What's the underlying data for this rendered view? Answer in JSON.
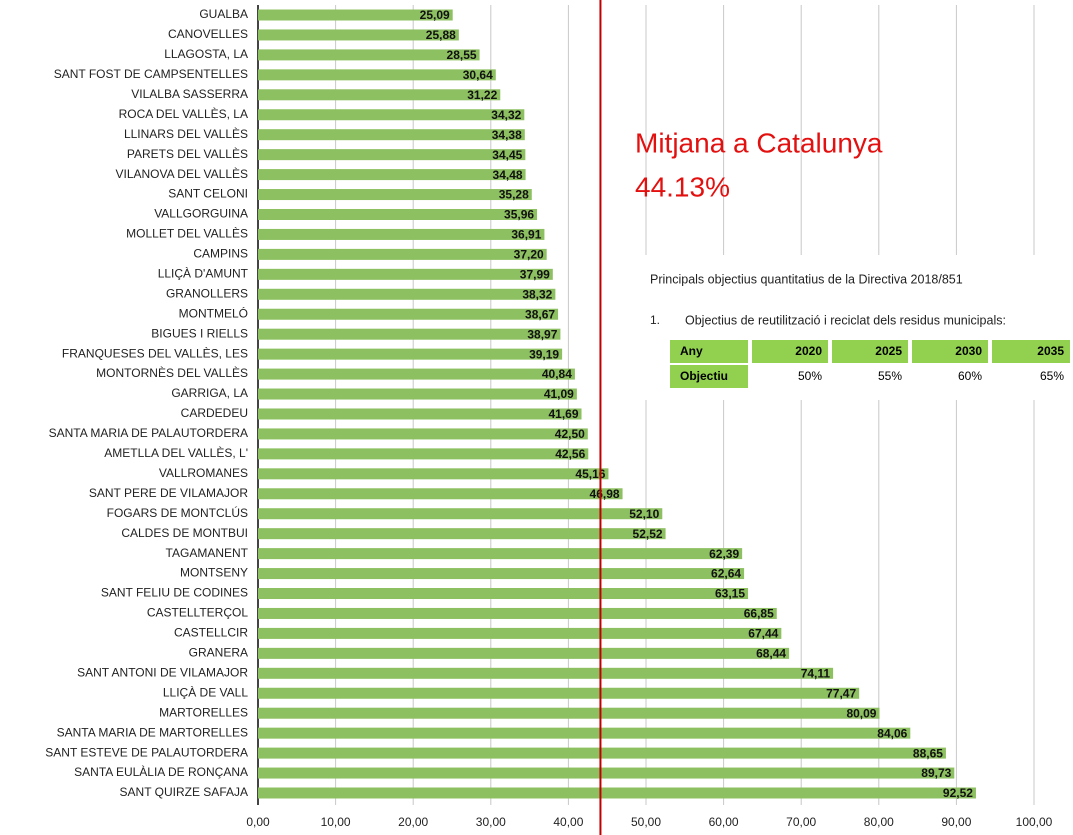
{
  "chart_data": {
    "type": "hbar",
    "categories": [
      "GUALBA",
      "CANOVELLES",
      "LLAGOSTA, LA",
      "SANT FOST DE CAMPSENTELLES",
      "VILALBA SASSERRA",
      "ROCA DEL VALLÈS, LA",
      "LLINARS DEL VALLÈS",
      "PARETS DEL VALLÈS",
      "VILANOVA DEL VALLÈS",
      "SANT CELONI",
      "VALLGORGUINA",
      "MOLLET DEL VALLÈS",
      "CAMPINS",
      "LLIÇÀ D'AMUNT",
      "GRANOLLERS",
      "MONTMELÓ",
      "BIGUES I RIELLS",
      "FRANQUESES DEL VALLÈS, LES",
      "MONTORNÈS DEL VALLÈS",
      "GARRIGA, LA",
      "CARDEDEU",
      "SANTA MARIA DE PALAUTORDERA",
      "AMETLLA DEL VALLÈS, L'",
      "VALLROMANES",
      "SANT PERE DE VILAMAJOR",
      "FOGARS DE MONTCLÚS",
      "CALDES DE MONTBUI",
      "TAGAMANENT",
      "MONTSENY",
      "SANT FELIU DE CODINES",
      "CASTELLTERÇOL",
      "CASTELLCIR",
      "GRANERA",
      "SANT ANTONI DE VILAMAJOR",
      "LLIÇÀ DE VALL",
      "MARTORELLES",
      "SANTA MARIA DE MARTORELLES",
      "SANT ESTEVE DE PALAUTORDERA",
      "SANTA EULÀLIA DE RONÇANA",
      "SANT QUIRZE SAFAJA"
    ],
    "values": [
      25.09,
      25.88,
      28.55,
      30.64,
      31.22,
      34.32,
      34.38,
      34.45,
      34.48,
      35.28,
      35.96,
      36.91,
      37.2,
      37.99,
      38.32,
      38.67,
      38.97,
      39.19,
      40.84,
      41.09,
      41.69,
      42.5,
      42.56,
      45.16,
      46.98,
      52.1,
      52.52,
      62.39,
      62.64,
      63.15,
      66.85,
      67.44,
      68.44,
      74.11,
      77.47,
      80.09,
      84.06,
      88.65,
      89.73,
      92.52
    ],
    "value_labels": [
      "25,09",
      "25,88",
      "28,55",
      "30,64",
      "31,22",
      "34,32",
      "34,38",
      "34,45",
      "34,48",
      "35,28",
      "35,96",
      "36,91",
      "37,20",
      "37,99",
      "38,32",
      "38,67",
      "38,97",
      "39,19",
      "40,84",
      "41,09",
      "41,69",
      "42,50",
      "42,56",
      "45,16",
      "46,98",
      "52,10",
      "52,52",
      "62,39",
      "62,64",
      "63,15",
      "66,85",
      "67,44",
      "68,44",
      "74,11",
      "77,47",
      "80,09",
      "84,06",
      "88,65",
      "89,73",
      "92,52"
    ],
    "color": "#8dc060",
    "xlim": [
      0,
      100
    ],
    "xticks": [
      {
        "value": 0,
        "label": "0,00"
      },
      {
        "value": 10,
        "label": "10,00"
      },
      {
        "value": 20,
        "label": "20,00"
      },
      {
        "value": 30,
        "label": "30,00"
      },
      {
        "value": 40,
        "label": "40,00"
      },
      {
        "value": 50,
        "label": "50,00"
      },
      {
        "value": 60,
        "label": "60,00"
      },
      {
        "value": 70,
        "label": "70,00"
      },
      {
        "value": 80,
        "label": "80,00"
      },
      {
        "value": 90,
        "label": "90,00"
      },
      {
        "value": 100,
        "label": "100,00"
      }
    ],
    "grid": true,
    "reference_line": {
      "value": 44.13,
      "color": "#c00000",
      "label": [
        "Mitjana a Catalunya",
        "44.13%"
      ],
      "label_color": "#e31010"
    },
    "inset": {
      "title": "Principals objectius quantitatius de la Directiva 2018/851",
      "item_number": "1.",
      "item": "Objectius de reutilització i reciclat dels residus municipals:",
      "table": {
        "header": [
          "Any",
          "2020",
          "2025",
          "2030",
          "2035"
        ],
        "rows": [
          [
            "Objectiu",
            "50%",
            "55%",
            "60%",
            "65%"
          ]
        ]
      }
    }
  }
}
